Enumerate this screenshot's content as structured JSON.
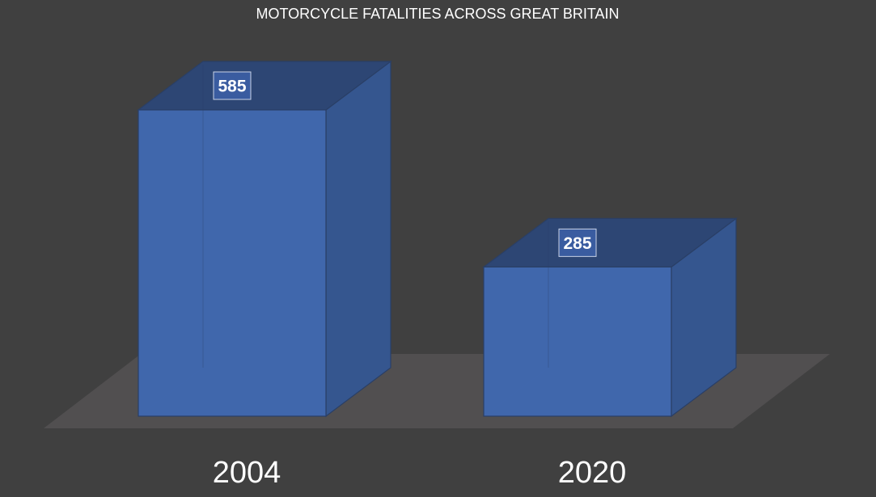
{
  "chart_data": {
    "type": "bar",
    "title": "MOTORCYCLE FATALITIES ACROSS GREAT BRITAIN",
    "categories": [
      "2004",
      "2020"
    ],
    "values": [
      585,
      285
    ],
    "ylim": [
      0,
      585
    ],
    "grid": false,
    "legend": "none",
    "style": "3d-box",
    "colors": {
      "background": "#404040",
      "floor": "#514f50",
      "bar_front": "#4068b0",
      "bar_side": "#35568f",
      "bar_top": "#2d4674",
      "bar_edge": "#2a3f66",
      "label_box": "#3a5ca0",
      "text": "#ffffff"
    }
  }
}
